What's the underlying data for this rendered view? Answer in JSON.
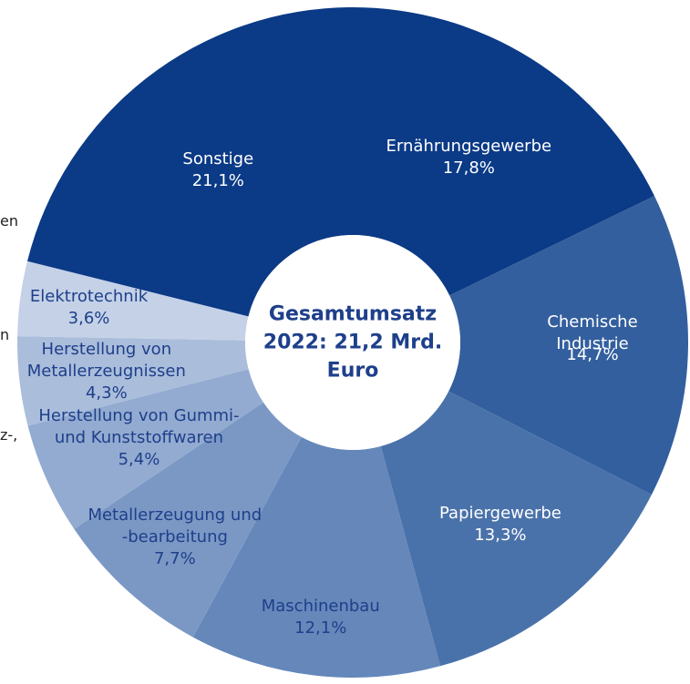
{
  "chart_data": {
    "type": "donut",
    "center_text": "Gesamtumsatz\n2022: 21,2 Mrd.\nEuro",
    "categories": [
      "Ernährungsgewerbe",
      "Chemische Industrie",
      "Papiergewerbe",
      "Maschinenbau",
      "Metallerzeugung und\n-bearbeitung",
      "Herstellung von Gummi-\nund Kunststoffwaren",
      "Herstellung von\nMetallerzeugnissen",
      "Elektrotechnik",
      "Sonstige"
    ],
    "values": [
      17.8,
      14.7,
      13.3,
      12.1,
      7.7,
      5.4,
      4.3,
      3.6,
      21.1
    ],
    "value_labels": [
      "17,8%",
      "14,7%",
      "13,3%",
      "12,1%",
      "7,7%",
      "5,4%",
      "4,3%",
      "3,6%",
      "21,1%"
    ],
    "colors": [
      "#0b3a86",
      "#335f9e",
      "#4a72aa",
      "#6587ba",
      "#7b98c5",
      "#93abd1",
      "#aabddb",
      "#c4d1e7",
      "#0b3a86"
    ],
    "label_colors": [
      "#ffffff",
      "#ffffff",
      "#ffffff",
      "#1e3f8a",
      "#1e3f8a",
      "#1e3f8a",
      "#1e3f8a",
      "#1e3f8a",
      "#ffffff"
    ],
    "annotations": [
      "en",
      "n",
      "z-,"
    ]
  }
}
